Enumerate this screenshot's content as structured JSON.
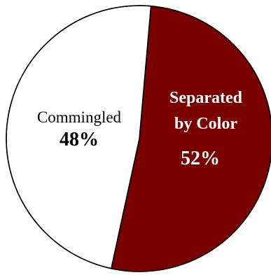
{
  "chart_data": {
    "type": "pie",
    "title": "",
    "start_angle_deg": 5,
    "direction": "clockwise",
    "slices": [
      {
        "label_lines": [
          "Separated",
          "by Color"
        ],
        "percent_label": "52%",
        "value": 52,
        "color": "#7a0000",
        "text_color": "#ffffff"
      },
      {
        "label_lines": [
          "Commingled"
        ],
        "percent_label": "48%",
        "value": 48,
        "color": "#ffffff",
        "text_color": "#000000"
      }
    ],
    "outline_color": "#000000"
  }
}
